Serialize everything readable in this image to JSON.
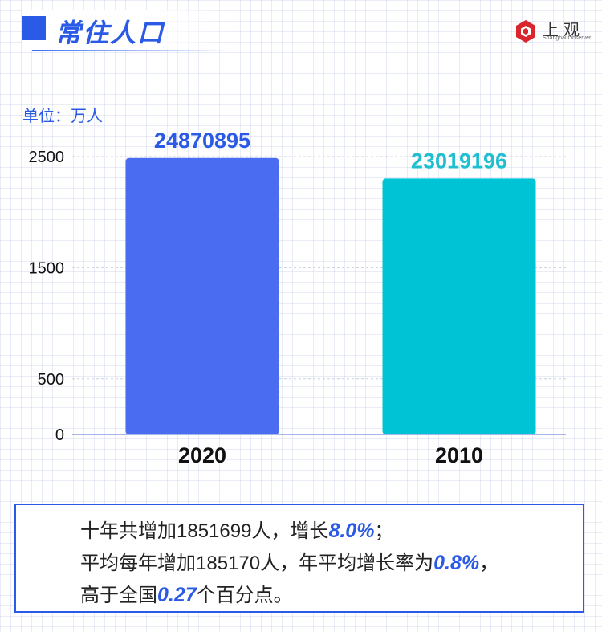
{
  "header": {
    "title": "常住人口"
  },
  "logo": {
    "cn": "上观",
    "en": "Shanghai Observer"
  },
  "unit_label": "单位：万人",
  "colors": {
    "accent": "#2a5ae6",
    "bar_2020": "#4a6cf0",
    "bar_2010": "#00c4d6",
    "label_2010": "#1fbfd0"
  },
  "chart_data": {
    "type": "bar",
    "categories": [
      "2020",
      "2010"
    ],
    "values": [
      2487.0895,
      2301.9196
    ],
    "data_labels": [
      "24870895",
      "23019196"
    ],
    "y_ticks": [
      0,
      500,
      1500,
      2500
    ],
    "ylim": [
      0,
      2500
    ],
    "ylabel": "单位：万人",
    "grid": true
  },
  "summary": {
    "line1": {
      "pre": "十年共增加1851699人，增长",
      "hl": "8.0%",
      "post": "；"
    },
    "line2": {
      "pre": "平均每年增加185170人，年平均增长率为",
      "hl": "0.8%",
      "post": "，"
    },
    "line3": {
      "pre": "高于全国",
      "hl": "0.27",
      "post": "个百分点。"
    }
  }
}
